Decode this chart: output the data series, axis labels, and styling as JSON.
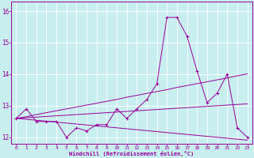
{
  "xlabel": "Windchill (Refroidissement éolien,°C)",
  "background_color": "#c8eef0",
  "grid_color": "#ffffff",
  "line_color": "#990099",
  "x_hours": [
    0,
    1,
    2,
    3,
    4,
    5,
    6,
    7,
    8,
    9,
    10,
    11,
    12,
    13,
    14,
    15,
    16,
    17,
    18,
    19,
    20,
    21,
    22,
    23
  ],
  "windchill": [
    12.6,
    12.9,
    12.5,
    12.5,
    12.5,
    12.0,
    12.3,
    12.2,
    12.4,
    12.4,
    12.9,
    12.6,
    12.9,
    13.2,
    13.7,
    15.8,
    15.8,
    15.2,
    14.1,
    13.1,
    13.4,
    14.0,
    12.3,
    12.0
  ],
  "trend_up": [
    12.6,
    12.65,
    12.72,
    12.78,
    12.84,
    12.9,
    12.96,
    13.02,
    13.08,
    13.14,
    13.2,
    13.27,
    13.33,
    13.39,
    13.45,
    13.51,
    13.58,
    13.64,
    13.7,
    13.76,
    13.82,
    13.88,
    13.95,
    14.01
  ],
  "trend_flat": [
    12.6,
    12.62,
    12.64,
    12.66,
    12.68,
    12.7,
    12.72,
    12.74,
    12.76,
    12.78,
    12.8,
    12.82,
    12.84,
    12.86,
    12.88,
    12.9,
    12.92,
    12.94,
    12.96,
    12.98,
    13.0,
    13.02,
    13.04,
    13.06
  ],
  "trend_down": [
    12.6,
    12.57,
    12.54,
    12.51,
    12.48,
    12.45,
    12.42,
    12.39,
    12.36,
    12.33,
    12.3,
    12.27,
    12.24,
    12.21,
    12.18,
    12.15,
    12.12,
    12.09,
    12.06,
    12.03,
    12.0,
    11.97,
    11.94,
    11.91
  ],
  "ylim": [
    11.8,
    16.3
  ],
  "yticks": [
    12,
    13,
    14,
    15,
    16
  ],
  "xlim": [
    -0.5,
    23.5
  ],
  "figsize": [
    3.2,
    2.0
  ],
  "dpi": 100
}
